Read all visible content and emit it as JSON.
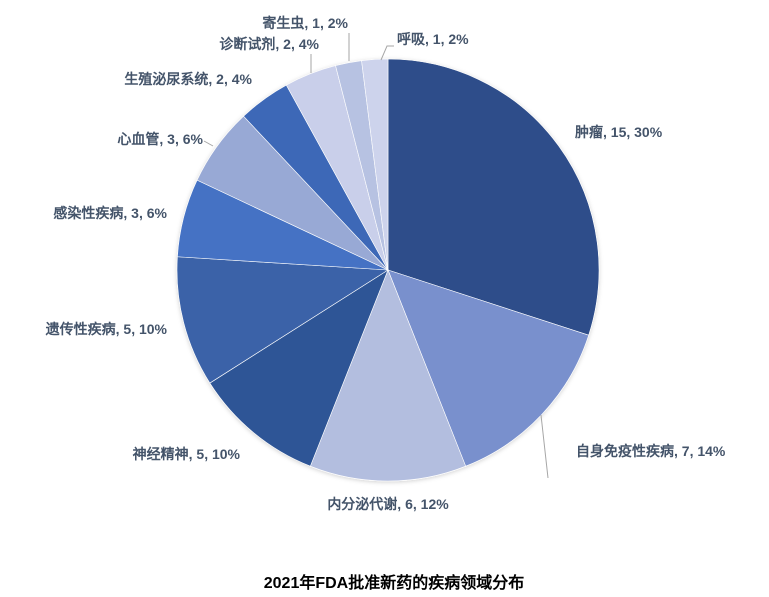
{
  "chart_data": {
    "type": "pie",
    "title": "2021年FDA批准新药的疾病领域分布",
    "start_angle": "12 o'clock",
    "direction": "clockwise",
    "legend": "none",
    "label_color": "#44546a",
    "slices": [
      {
        "label": "肿瘤",
        "value": 15,
        "percent": "30%",
        "color": "#2e4d8a"
      },
      {
        "label": "自身免疫性疾病",
        "value": 7,
        "percent": "14%",
        "color": "#7990cd"
      },
      {
        "label": "内分泌代谢",
        "value": 6,
        "percent": "12%",
        "color": "#b3bedf"
      },
      {
        "label": "神经精神",
        "value": 5,
        "percent": "10%",
        "color": "#2f5596"
      },
      {
        "label": "遗传性疾病",
        "value": 5,
        "percent": "10%",
        "color": "#3a62a8"
      },
      {
        "label": "感染性疾病",
        "value": 3,
        "percent": "6%",
        "color": "#4472c4"
      },
      {
        "label": "心血管",
        "value": 3,
        "percent": "6%",
        "color": "#98a9d5"
      },
      {
        "label": "生殖泌尿系统",
        "value": 2,
        "percent": "4%",
        "color": "#3d68b7"
      },
      {
        "label": "诊断试剂",
        "value": 2,
        "percent": "4%",
        "color": "#c9cfea"
      },
      {
        "label": "寄生虫",
        "value": 1,
        "percent": "2%",
        "color": "#b7c2e2"
      },
      {
        "label": "呼吸",
        "value": 1,
        "percent": "2%",
        "color": "#cdd3ec"
      }
    ]
  }
}
